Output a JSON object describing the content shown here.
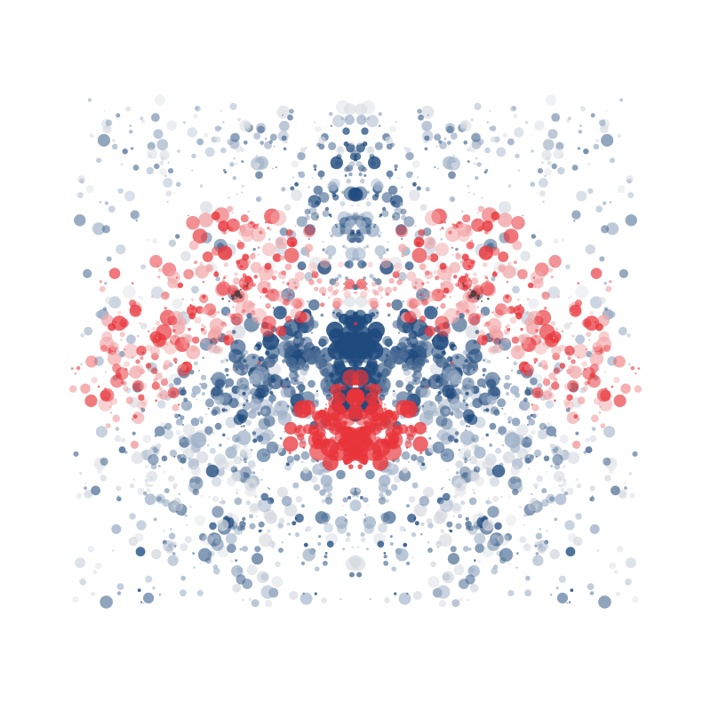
{
  "artwork": {
    "subject": "symmetric-dot-inkblot",
    "palette": {
      "background": "#ffffff",
      "blue_dark": "#1f4a7d",
      "blue_mid": "#4f6f96",
      "blue_light": "#9fb1c8",
      "gray_light": "#d7dbe1",
      "red": "#e8343a",
      "red_light": "#f2a9ab",
      "dark": "#3a3030"
    }
  }
}
